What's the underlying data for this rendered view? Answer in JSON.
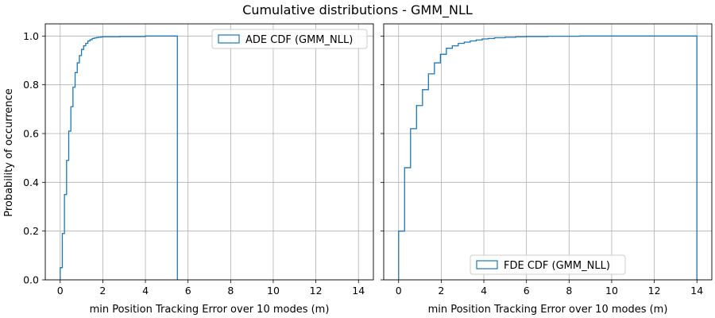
{
  "figure": {
    "suptitle": "Cumulative distributions - GMM_NLL",
    "shared_ylabel": "Probability of occurrence"
  },
  "chart_data": [
    {
      "type": "line",
      "step": "post",
      "series": [
        {
          "name": "ADE CDF (GMM_NLL)",
          "x": [
            0.0,
            0.1,
            0.2,
            0.3,
            0.4,
            0.5,
            0.6,
            0.7,
            0.8,
            0.9,
            1.0,
            1.1,
            1.2,
            1.3,
            1.4,
            1.5,
            1.6,
            1.7,
            1.8,
            1.9,
            2.0,
            2.8,
            4.0,
            5.5
          ],
          "y": [
            0.05,
            0.19,
            0.35,
            0.49,
            0.61,
            0.71,
            0.79,
            0.85,
            0.89,
            0.92,
            0.945,
            0.96,
            0.97,
            0.98,
            0.985,
            0.99,
            0.992,
            0.994,
            0.995,
            0.996,
            0.997,
            0.998,
            1.0,
            0.0
          ],
          "color": "#1f77b4"
        }
      ],
      "xlabel": "min Position Tracking Error over 10 modes (m)",
      "ylabel": "Probability of occurrence",
      "xlim": [
        -0.7,
        14.7
      ],
      "ylim": [
        0,
        1.05
      ],
      "xticks": [
        0,
        2,
        4,
        6,
        8,
        10,
        12,
        14
      ],
      "yticks": [
        0.0,
        0.2,
        0.4,
        0.6,
        0.8,
        1.0
      ],
      "grid": true,
      "legend_position": "top-right"
    },
    {
      "type": "line",
      "step": "post",
      "series": [
        {
          "name": "FDE CDF (GMM_NLL)",
          "x": [
            0.0,
            0.28,
            0.56,
            0.84,
            1.12,
            1.4,
            1.68,
            1.96,
            2.24,
            2.52,
            2.8,
            3.08,
            3.36,
            3.64,
            3.92,
            4.2,
            4.5,
            5.0,
            5.5,
            6.0,
            7.0,
            8.5,
            14.0
          ],
          "y": [
            0.2,
            0.46,
            0.62,
            0.715,
            0.78,
            0.845,
            0.89,
            0.925,
            0.95,
            0.96,
            0.97,
            0.975,
            0.98,
            0.984,
            0.988,
            0.99,
            0.993,
            0.995,
            0.997,
            0.998,
            0.999,
            1.0,
            0.0
          ],
          "color": "#1f77b4"
        }
      ],
      "xlabel": "min Position Tracking Error over 10 modes (m)",
      "xlim": [
        -0.7,
        14.7
      ],
      "ylim": [
        0,
        1.05
      ],
      "xticks": [
        0,
        2,
        4,
        6,
        8,
        10,
        12,
        14
      ],
      "yticks": [
        0.0,
        0.2,
        0.4,
        0.6,
        0.8,
        1.0
      ],
      "grid": true,
      "legend_position": "bottom-center"
    }
  ]
}
